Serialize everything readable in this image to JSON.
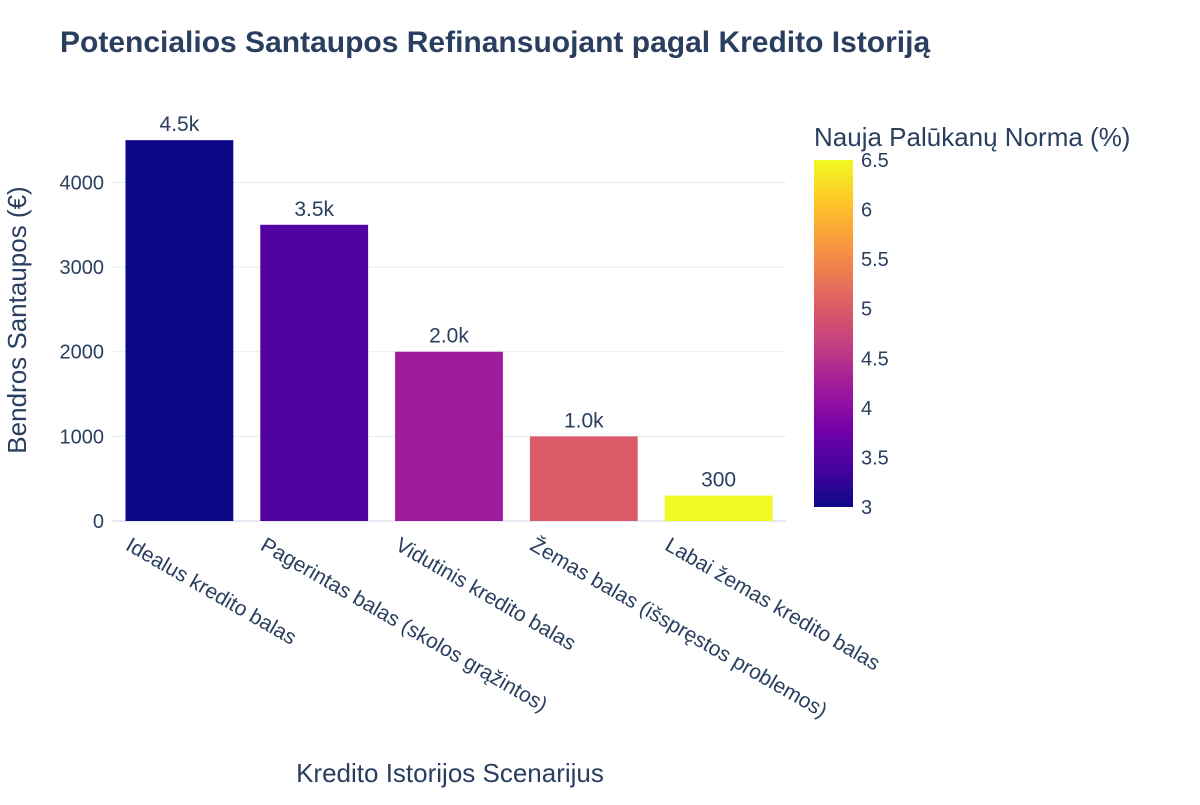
{
  "chart_data": {
    "type": "bar",
    "title": "Potencialios Santaupos Refinansuojant pagal Kredito Istoriją",
    "xlabel": "Kredito Istorijos Scenarijus",
    "ylabel": "Bendros Santaupos (€)",
    "categories": [
      "Idealus kredito balas",
      "Pagerintas balas (skolos grąžintos)",
      "Vidutinis kredito balas",
      "Žemas balas (išspręstos problemos)",
      "Labai žemas kredito balas"
    ],
    "values": [
      4500,
      3500,
      2000,
      1000,
      300
    ],
    "bar_labels": [
      "4.5k",
      "3.5k",
      "2.0k",
      "1.0k",
      "300"
    ],
    "color_values": [
      3.0,
      3.5,
      4.2,
      5.0,
      6.5
    ],
    "ylim": [
      0,
      4750
    ],
    "yticks": [
      0,
      1000,
      2000,
      3000,
      4000
    ],
    "grid": true,
    "colorbar": {
      "title": "Nauja Palūkanų Norma (%)",
      "range": [
        3.0,
        6.5
      ],
      "ticks": [
        3,
        3.5,
        4,
        4.5,
        5,
        5.5,
        6,
        6.5
      ],
      "tick_labels": [
        "3",
        "3.5",
        "4",
        "4.5",
        "5",
        "5.5",
        "6",
        "6.5"
      ],
      "colorscale": "plasma",
      "placement": "right"
    }
  }
}
